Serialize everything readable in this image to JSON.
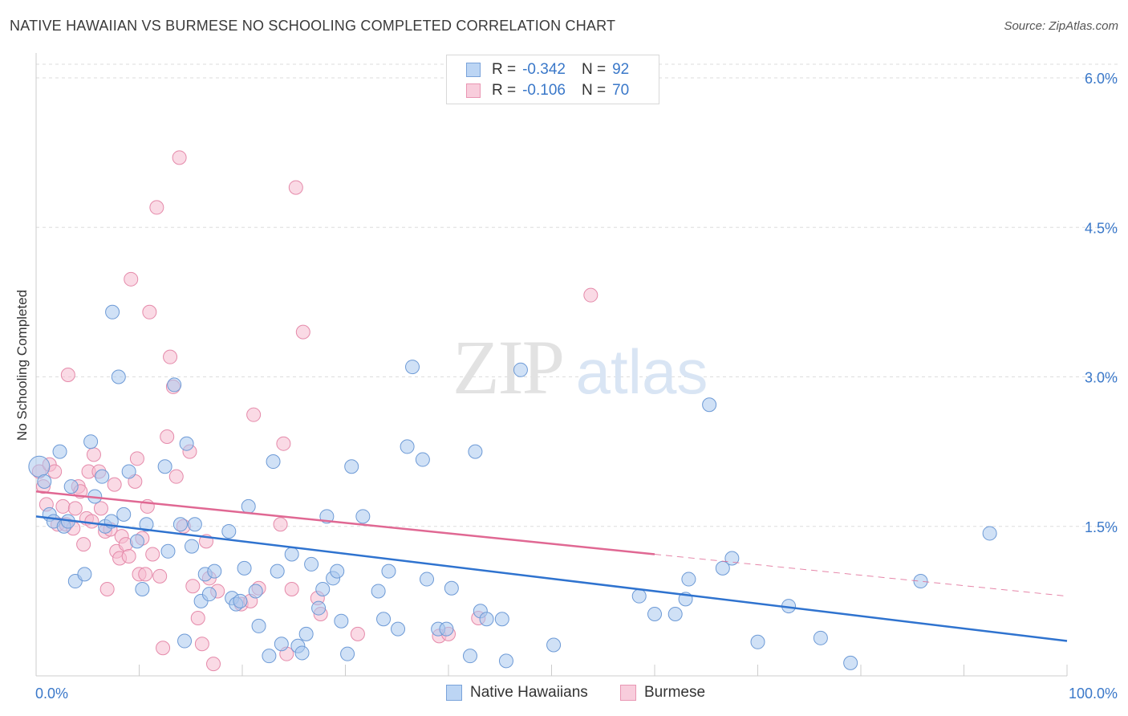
{
  "title": "NATIVE HAWAIIAN VS BURMESE NO SCHOOLING COMPLETED CORRELATION CHART",
  "source": "Source: ZipAtlas.com",
  "watermark": {
    "zip": "ZIP",
    "atlas": "atlas"
  },
  "legend": {
    "rows": [
      {
        "r_label": "R =",
        "r_value": "-0.342",
        "n_label": "N =",
        "n_value": "92"
      },
      {
        "r_label": "R =",
        "r_value": "-0.106",
        "n_label": "N =",
        "n_value": "70"
      }
    ]
  },
  "colors": {
    "blue_fill": "#a9c8ef",
    "blue_stroke": "#6d9ad6",
    "blue_line": "#2f73cf",
    "pink_fill": "#f6bcd0",
    "pink_stroke": "#e58aaa",
    "pink_line": "#e06893",
    "axis_label": "#3a78c9",
    "grid": "#dddddd"
  },
  "chart_data": {
    "type": "scatter",
    "title": "NATIVE HAWAIIAN VS BURMESE NO SCHOOLING COMPLETED CORRELATION CHART",
    "xlabel": "",
    "ylabel": "No Schooling Completed",
    "xlim": [
      0,
      100
    ],
    "ylim": [
      0,
      6.3
    ],
    "x_tick_labels": [
      "0.0%",
      "100.0%"
    ],
    "y_ticks": [
      1.5,
      3.0,
      4.5,
      6.0
    ],
    "y_tick_labels": [
      "1.5%",
      "3.0%",
      "4.5%",
      "6.0%"
    ],
    "grid": true,
    "legend_position": "top-center",
    "series": [
      {
        "name": "Native Hawaiians",
        "trend": {
          "x": [
            0,
            100
          ],
          "y": [
            1.6,
            0.35
          ]
        },
        "points": [
          [
            0.3,
            2.1
          ],
          [
            0.8,
            1.95
          ],
          [
            1.3,
            1.62
          ],
          [
            1.7,
            1.55
          ],
          [
            2.3,
            2.25
          ],
          [
            2.7,
            1.5
          ],
          [
            3.1,
            1.55
          ],
          [
            3.4,
            1.9
          ],
          [
            3.8,
            0.95
          ],
          [
            4.7,
            1.02
          ],
          [
            5.3,
            2.35
          ],
          [
            5.7,
            1.8
          ],
          [
            6.4,
            2.0
          ],
          [
            6.7,
            1.5
          ],
          [
            7.3,
            1.55
          ],
          [
            7.4,
            3.65
          ],
          [
            8.0,
            3.0
          ],
          [
            8.5,
            1.62
          ],
          [
            9.0,
            2.05
          ],
          [
            9.8,
            1.35
          ],
          [
            10.3,
            0.87
          ],
          [
            10.7,
            1.52
          ],
          [
            12.5,
            2.1
          ],
          [
            12.8,
            1.25
          ],
          [
            13.4,
            2.92
          ],
          [
            14.0,
            1.52
          ],
          [
            14.4,
            0.35
          ],
          [
            14.6,
            2.33
          ],
          [
            15.1,
            1.3
          ],
          [
            15.4,
            1.52
          ],
          [
            16.0,
            0.75
          ],
          [
            16.4,
            1.02
          ],
          [
            16.8,
            0.82
          ],
          [
            17.3,
            1.05
          ],
          [
            18.7,
            1.45
          ],
          [
            19.0,
            0.78
          ],
          [
            19.4,
            0.72
          ],
          [
            19.8,
            0.75
          ],
          [
            20.2,
            1.08
          ],
          [
            20.6,
            1.7
          ],
          [
            21.3,
            0.85
          ],
          [
            21.6,
            0.5
          ],
          [
            22.6,
            0.2
          ],
          [
            23.0,
            2.15
          ],
          [
            23.4,
            1.05
          ],
          [
            23.8,
            0.32
          ],
          [
            24.8,
            1.22
          ],
          [
            25.4,
            0.3
          ],
          [
            25.8,
            0.23
          ],
          [
            26.2,
            0.42
          ],
          [
            26.7,
            1.12
          ],
          [
            27.4,
            0.68
          ],
          [
            27.8,
            0.87
          ],
          [
            28.2,
            1.6
          ],
          [
            28.8,
            0.98
          ],
          [
            29.2,
            1.05
          ],
          [
            29.6,
            0.55
          ],
          [
            30.2,
            0.22
          ],
          [
            30.6,
            2.1
          ],
          [
            31.7,
            1.6
          ],
          [
            33.2,
            0.85
          ],
          [
            33.7,
            0.57
          ],
          [
            34.2,
            1.05
          ],
          [
            35.1,
            0.47
          ],
          [
            36.0,
            2.3
          ],
          [
            36.5,
            3.1
          ],
          [
            37.5,
            2.17
          ],
          [
            37.9,
            0.97
          ],
          [
            39.0,
            0.47
          ],
          [
            39.8,
            0.47
          ],
          [
            40.3,
            0.88
          ],
          [
            42.1,
            0.2
          ],
          [
            42.6,
            2.25
          ],
          [
            43.1,
            0.65
          ],
          [
            43.7,
            0.57
          ],
          [
            45.2,
            0.57
          ],
          [
            45.6,
            0.15
          ],
          [
            47.0,
            3.07
          ],
          [
            50.2,
            0.31
          ],
          [
            58.5,
            0.8
          ],
          [
            60.0,
            0.62
          ],
          [
            62.0,
            0.62
          ],
          [
            63.0,
            0.77
          ],
          [
            63.3,
            0.97
          ],
          [
            65.3,
            2.72
          ],
          [
            66.6,
            1.08
          ],
          [
            67.5,
            1.18
          ],
          [
            70.0,
            0.34
          ],
          [
            73.0,
            0.7
          ],
          [
            76.1,
            0.38
          ],
          [
            79.0,
            0.13
          ],
          [
            85.8,
            0.95
          ],
          [
            92.5,
            1.43
          ]
        ]
      },
      {
        "name": "Burmese",
        "trend": {
          "x": [
            0,
            60
          ],
          "y": [
            1.85,
            1.22
          ]
        },
        "trend_extension": {
          "x": [
            60,
            100
          ],
          "y": [
            1.22,
            0.8
          ]
        },
        "points": [
          [
            0.3,
            2.05
          ],
          [
            0.7,
            1.9
          ],
          [
            1.0,
            1.72
          ],
          [
            1.3,
            2.12
          ],
          [
            1.8,
            2.05
          ],
          [
            2.1,
            1.52
          ],
          [
            2.6,
            1.7
          ],
          [
            2.9,
            1.52
          ],
          [
            3.1,
            3.02
          ],
          [
            3.6,
            1.48
          ],
          [
            3.8,
            1.68
          ],
          [
            4.1,
            1.9
          ],
          [
            4.3,
            1.85
          ],
          [
            4.6,
            1.32
          ],
          [
            4.9,
            1.58
          ],
          [
            5.1,
            2.05
          ],
          [
            5.4,
            1.55
          ],
          [
            5.6,
            2.22
          ],
          [
            6.1,
            2.05
          ],
          [
            6.3,
            1.68
          ],
          [
            6.7,
            1.45
          ],
          [
            6.9,
            0.87
          ],
          [
            7.2,
            1.47
          ],
          [
            7.6,
            1.92
          ],
          [
            7.8,
            1.25
          ],
          [
            8.1,
            1.18
          ],
          [
            8.3,
            1.4
          ],
          [
            8.7,
            1.32
          ],
          [
            9.0,
            1.2
          ],
          [
            9.2,
            3.98
          ],
          [
            9.6,
            1.95
          ],
          [
            9.8,
            2.18
          ],
          [
            10.0,
            1.02
          ],
          [
            10.3,
            1.38
          ],
          [
            10.6,
            1.02
          ],
          [
            10.8,
            1.7
          ],
          [
            11.0,
            3.65
          ],
          [
            11.3,
            1.22
          ],
          [
            11.7,
            4.7
          ],
          [
            12.0,
            1.0
          ],
          [
            12.3,
            0.28
          ],
          [
            12.7,
            2.4
          ],
          [
            13.0,
            3.2
          ],
          [
            13.3,
            2.9
          ],
          [
            13.6,
            2.0
          ],
          [
            13.9,
            5.2
          ],
          [
            14.3,
            1.5
          ],
          [
            14.9,
            2.25
          ],
          [
            15.2,
            0.9
          ],
          [
            15.7,
            0.58
          ],
          [
            16.1,
            0.32
          ],
          [
            16.5,
            1.35
          ],
          [
            16.8,
            0.98
          ],
          [
            17.2,
            0.12
          ],
          [
            17.6,
            0.85
          ],
          [
            19.9,
            0.72
          ],
          [
            20.8,
            0.75
          ],
          [
            21.1,
            2.62
          ],
          [
            21.6,
            0.88
          ],
          [
            23.7,
            1.52
          ],
          [
            24.0,
            2.33
          ],
          [
            24.3,
            0.22
          ],
          [
            24.8,
            0.87
          ],
          [
            25.2,
            4.9
          ],
          [
            25.9,
            3.45
          ],
          [
            27.3,
            0.78
          ],
          [
            27.6,
            0.62
          ],
          [
            31.2,
            0.42
          ],
          [
            39.1,
            0.4
          ],
          [
            40.0,
            0.42
          ],
          [
            42.9,
            0.58
          ],
          [
            53.8,
            3.82
          ]
        ]
      }
    ]
  }
}
